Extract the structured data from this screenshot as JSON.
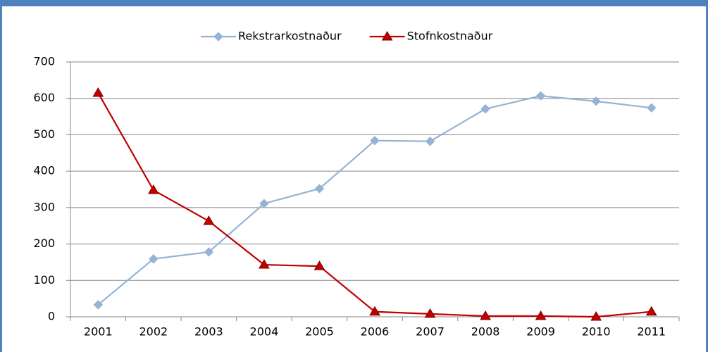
{
  "chart_data": {
    "type": "line",
    "categories": [
      "2001",
      "2002",
      "2003",
      "2004",
      "2005",
      "2006",
      "2007",
      "2008",
      "2009",
      "2010",
      "2011"
    ],
    "series": [
      {
        "name": "Rekstrarkostnaður",
        "color": "#95b3d7",
        "marker": "diamond",
        "values": [
          33,
          159,
          178,
          311,
          352,
          484,
          482,
          571,
          607,
          592,
          574
        ]
      },
      {
        "name": "Stofnkostnaður",
        "color": "#c00000",
        "marker": "triangle",
        "values": [
          615,
          348,
          263,
          143,
          139,
          14,
          8,
          2,
          2,
          0,
          14
        ]
      }
    ],
    "ylim": [
      0,
      700
    ],
    "yticks": [
      0,
      100,
      200,
      300,
      400,
      500,
      600,
      700
    ],
    "grid": true,
    "legend": "top"
  }
}
